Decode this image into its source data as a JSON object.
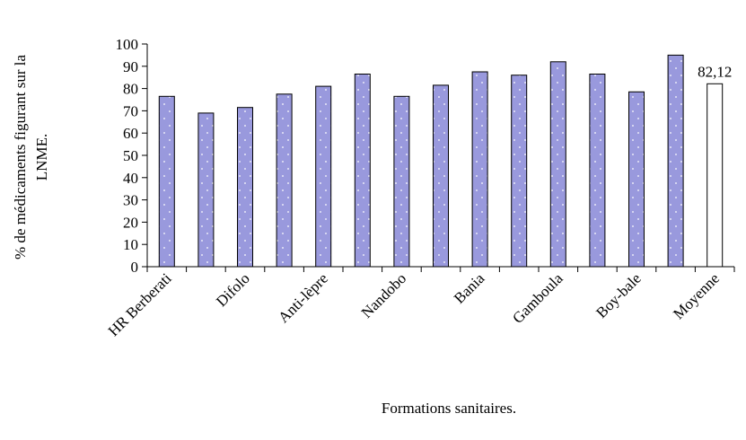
{
  "chart_data": {
    "type": "bar",
    "title": "",
    "xlabel": "Formations sanitaires.",
    "ylabel_line1": "% de médicaments figurant sur la",
    "ylabel_line2": "LNME.",
    "ylim": [
      0,
      100
    ],
    "yticks": [
      0,
      10,
      20,
      30,
      40,
      50,
      60,
      70,
      80,
      90,
      100
    ],
    "categories": [
      "HR Berberati",
      "",
      "Difolo",
      "",
      "Anti-lèpre",
      "",
      "Nandobo",
      "",
      "Bania",
      "",
      "Gamboula",
      "",
      "Boy-bale",
      "",
      "Moyenne"
    ],
    "values": [
      76.5,
      69,
      71.5,
      77.5,
      81,
      86.5,
      76.5,
      81.5,
      87.5,
      86,
      92,
      86.5,
      78.5,
      95,
      82.12
    ],
    "highlight_index": 14,
    "data_labels": [
      {
        "index": 14,
        "text": "82,12"
      }
    ],
    "colors": {
      "bar": "#9999dd",
      "highlight": "#ffffff",
      "stroke": "#000000"
    },
    "grid": false,
    "legend": "none"
  }
}
